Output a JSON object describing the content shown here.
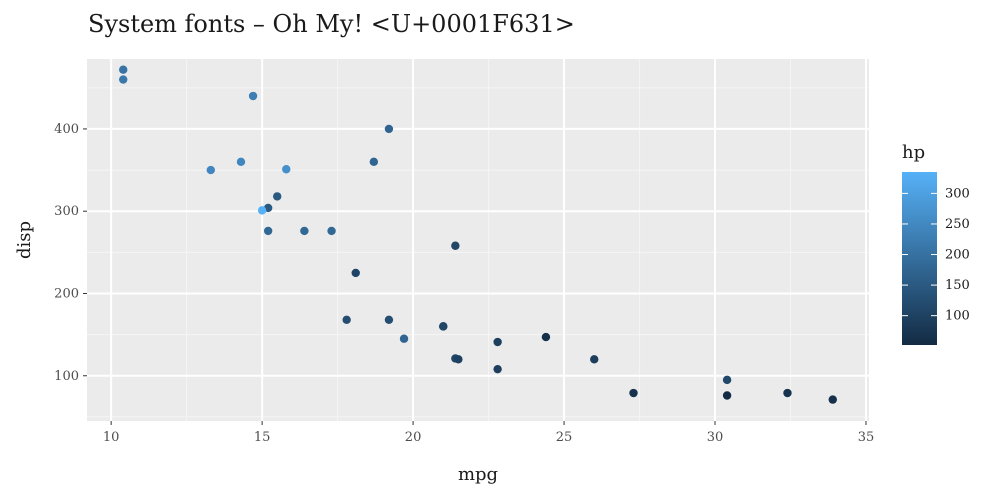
{
  "chart_data": {
    "type": "scatter",
    "title": "System fonts – Oh My! <U+0001F631>",
    "xlabel": "mpg",
    "ylabel": "disp",
    "xlim": [
      9.2,
      35.1
    ],
    "ylim": [
      45,
      485
    ],
    "x_ticks": [
      10,
      15,
      20,
      25,
      30,
      35
    ],
    "y_ticks": [
      100,
      200,
      300,
      400
    ],
    "grid": true,
    "legend": {
      "title": "hp",
      "position": "right",
      "ticks": [
        100,
        150,
        200,
        250,
        300
      ],
      "range": [
        52,
        335
      ],
      "color_low": "#132B43",
      "color_high": "#56B1F7"
    },
    "points": [
      {
        "x": 10.4,
        "y": 472,
        "hp": 205
      },
      {
        "x": 10.4,
        "y": 460,
        "hp": 215
      },
      {
        "x": 14.7,
        "y": 440,
        "hp": 230
      },
      {
        "x": 19.2,
        "y": 400,
        "hp": 175
      },
      {
        "x": 14.3,
        "y": 360,
        "hp": 245
      },
      {
        "x": 18.7,
        "y": 360,
        "hp": 175
      },
      {
        "x": 13.3,
        "y": 350,
        "hp": 245
      },
      {
        "x": 15.8,
        "y": 351,
        "hp": 264
      },
      {
        "x": 15.5,
        "y": 318,
        "hp": 150
      },
      {
        "x": 15.2,
        "y": 304,
        "hp": 150
      },
      {
        "x": 15.0,
        "y": 301,
        "hp": 335
      },
      {
        "x": 15.2,
        "y": 276,
        "hp": 180
      },
      {
        "x": 16.4,
        "y": 276,
        "hp": 180
      },
      {
        "x": 17.3,
        "y": 276,
        "hp": 180
      },
      {
        "x": 21.4,
        "y": 258,
        "hp": 110
      },
      {
        "x": 18.1,
        "y": 225,
        "hp": 105
      },
      {
        "x": 17.8,
        "y": 168,
        "hp": 123
      },
      {
        "x": 19.2,
        "y": 168,
        "hp": 123
      },
      {
        "x": 21.0,
        "y": 160,
        "hp": 110
      },
      {
        "x": 21.0,
        "y": 160,
        "hp": 110
      },
      {
        "x": 24.4,
        "y": 147,
        "hp": 62
      },
      {
        "x": 19.7,
        "y": 145,
        "hp": 175
      },
      {
        "x": 22.8,
        "y": 141,
        "hp": 95
      },
      {
        "x": 21.4,
        "y": 121,
        "hp": 109
      },
      {
        "x": 21.5,
        "y": 120,
        "hp": 97
      },
      {
        "x": 26.0,
        "y": 120,
        "hp": 91
      },
      {
        "x": 22.8,
        "y": 108,
        "hp": 93
      },
      {
        "x": 30.4,
        "y": 95,
        "hp": 113
      },
      {
        "x": 27.3,
        "y": 79,
        "hp": 66
      },
      {
        "x": 32.4,
        "y": 79,
        "hp": 66
      },
      {
        "x": 30.4,
        "y": 76,
        "hp": 52
      },
      {
        "x": 33.9,
        "y": 71,
        "hp": 65
      }
    ]
  }
}
